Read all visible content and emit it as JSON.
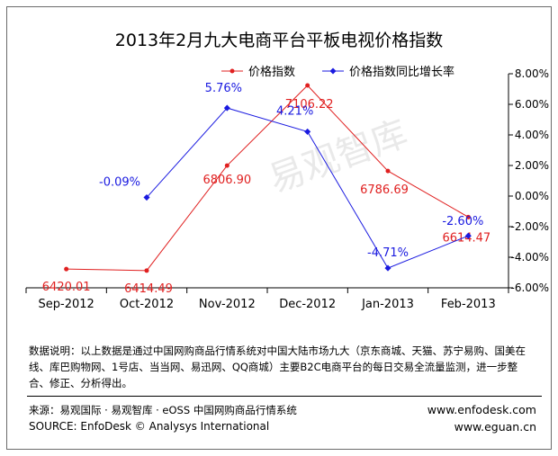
{
  "chart_data": {
    "type": "line",
    "title": "2013年2月九大电商平台平板电视价格指数",
    "categories": [
      "Sep-2012",
      "Oct-2012",
      "Nov-2012",
      "Dec-2012",
      "Jan-2013",
      "Feb-2013"
    ],
    "series": [
      {
        "name": "价格指数",
        "axis": "left",
        "color": "#e02020",
        "values": [
          6420.01,
          6414.49,
          6806.9,
          7106.22,
          6786.69,
          6614.47
        ],
        "labels": [
          "6420.01",
          "6414.49",
          "6806.90",
          "7106.22",
          "6786.69",
          "6614.47"
        ]
      },
      {
        "name": "价格指数同比增长率",
        "axis": "right",
        "color": "#1a1ae0",
        "values": [
          null,
          -0.09,
          5.76,
          4.21,
          -4.71,
          -2.6
        ],
        "labels": [
          "",
          "-0.09%",
          "5.76%",
          "4.21%",
          "-4.71%",
          "-2.60%"
        ]
      }
    ],
    "y_right": {
      "min": -6.0,
      "max": 8.0,
      "ticks": [
        "8.00%",
        "6.00%",
        "4.00%",
        "2.00%",
        "0.00%",
        "-2.00%",
        "-4.00%",
        "-6.00%"
      ]
    },
    "y_left_range": [
      6350,
      7150
    ],
    "legend_position": "top-center",
    "grid": false
  },
  "watermark": "易观智库",
  "notes": "数据说明：以上数据是通过中国网购商品行情系统对中国大陆市场九大（京东商城、天猫、苏宁易购、国美在线、库巴购物网、1号店、当当网、易迅网、QQ商城）主要B2C电商平台的每日交易全流量监测，进一步整合、修正、分析得出。",
  "source_cn": "来源：易观国际 · 易观智库 · eOSS 中国网购商品行情系统",
  "source_en": "SOURCE: EnfoDesk © Analysys International",
  "site1": "www.enfodesk.com",
  "site2": "www.eguan.cn"
}
